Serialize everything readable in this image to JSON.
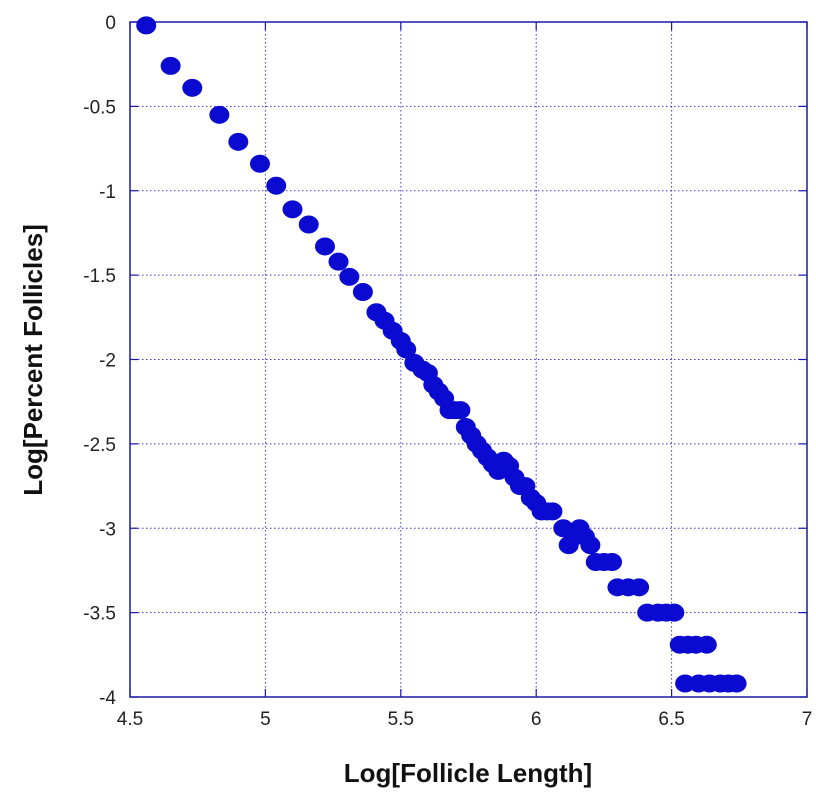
{
  "chart_data": {
    "type": "scatter",
    "title": "",
    "xlabel": "Log[Follicle Length]",
    "ylabel": "Log[Percent Follicles]",
    "xlim": [
      4.5,
      7
    ],
    "ylim": [
      -4,
      0
    ],
    "x_ticks": [
      "4.5",
      "5",
      "5.5",
      "6",
      "6.5",
      "7"
    ],
    "y_ticks": [
      "0",
      "-0.5",
      "-1",
      "-1.5",
      "-2",
      "-2.5",
      "-3",
      "-3.5",
      "-4"
    ],
    "grid": true,
    "grid_style": "dotted",
    "legend": "none",
    "colors": {
      "marker": "#0a0ad0",
      "frame": "#1a1aa8",
      "grid": "#3a3acf"
    },
    "series": [
      {
        "points": [
          [
            4.56,
            -0.02
          ],
          [
            4.65,
            -0.26
          ],
          [
            4.73,
            -0.39
          ],
          [
            4.83,
            -0.55
          ],
          [
            4.9,
            -0.71
          ],
          [
            4.98,
            -0.84
          ],
          [
            5.04,
            -0.97
          ],
          [
            5.1,
            -1.11
          ],
          [
            5.16,
            -1.2
          ],
          [
            5.22,
            -1.33
          ],
          [
            5.27,
            -1.42
          ],
          [
            5.31,
            -1.51
          ],
          [
            5.36,
            -1.6
          ],
          [
            5.41,
            -1.72
          ],
          [
            5.44,
            -1.77
          ],
          [
            5.47,
            -1.83
          ],
          [
            5.5,
            -1.89
          ],
          [
            5.52,
            -1.94
          ],
          [
            5.55,
            -2.02
          ],
          [
            5.58,
            -2.06
          ],
          [
            5.6,
            -2.08
          ],
          [
            5.62,
            -2.15
          ],
          [
            5.64,
            -2.19
          ],
          [
            5.66,
            -2.23
          ],
          [
            5.68,
            -2.3
          ],
          [
            5.7,
            -2.3
          ],
          [
            5.72,
            -2.3
          ],
          [
            5.74,
            -2.4
          ],
          [
            5.76,
            -2.45
          ],
          [
            5.78,
            -2.5
          ],
          [
            5.8,
            -2.54
          ],
          [
            5.82,
            -2.58
          ],
          [
            5.84,
            -2.62
          ],
          [
            5.86,
            -2.66
          ],
          [
            5.88,
            -2.6
          ],
          [
            5.9,
            -2.63
          ],
          [
            5.92,
            -2.7
          ],
          [
            5.94,
            -2.75
          ],
          [
            5.96,
            -2.75
          ],
          [
            5.98,
            -2.82
          ],
          [
            6.0,
            -2.85
          ],
          [
            6.02,
            -2.9
          ],
          [
            6.04,
            -2.9
          ],
          [
            6.06,
            -2.9
          ],
          [
            6.1,
            -3.0
          ],
          [
            6.12,
            -3.1
          ],
          [
            6.14,
            -3.05
          ],
          [
            6.16,
            -3.0
          ],
          [
            6.18,
            -3.05
          ],
          [
            6.2,
            -3.1
          ],
          [
            6.22,
            -3.2
          ],
          [
            6.25,
            -3.2
          ],
          [
            6.28,
            -3.2
          ],
          [
            6.3,
            -3.35
          ],
          [
            6.34,
            -3.35
          ],
          [
            6.38,
            -3.35
          ],
          [
            6.41,
            -3.5
          ],
          [
            6.45,
            -3.5
          ],
          [
            6.48,
            -3.5
          ],
          [
            6.51,
            -3.5
          ],
          [
            6.53,
            -3.69
          ],
          [
            6.56,
            -3.69
          ],
          [
            6.59,
            -3.69
          ],
          [
            6.63,
            -3.69
          ],
          [
            6.55,
            -3.92
          ],
          [
            6.6,
            -3.92
          ],
          [
            6.64,
            -3.92
          ],
          [
            6.68,
            -3.92
          ],
          [
            6.71,
            -3.92
          ],
          [
            6.74,
            -3.92
          ]
        ]
      }
    ]
  }
}
